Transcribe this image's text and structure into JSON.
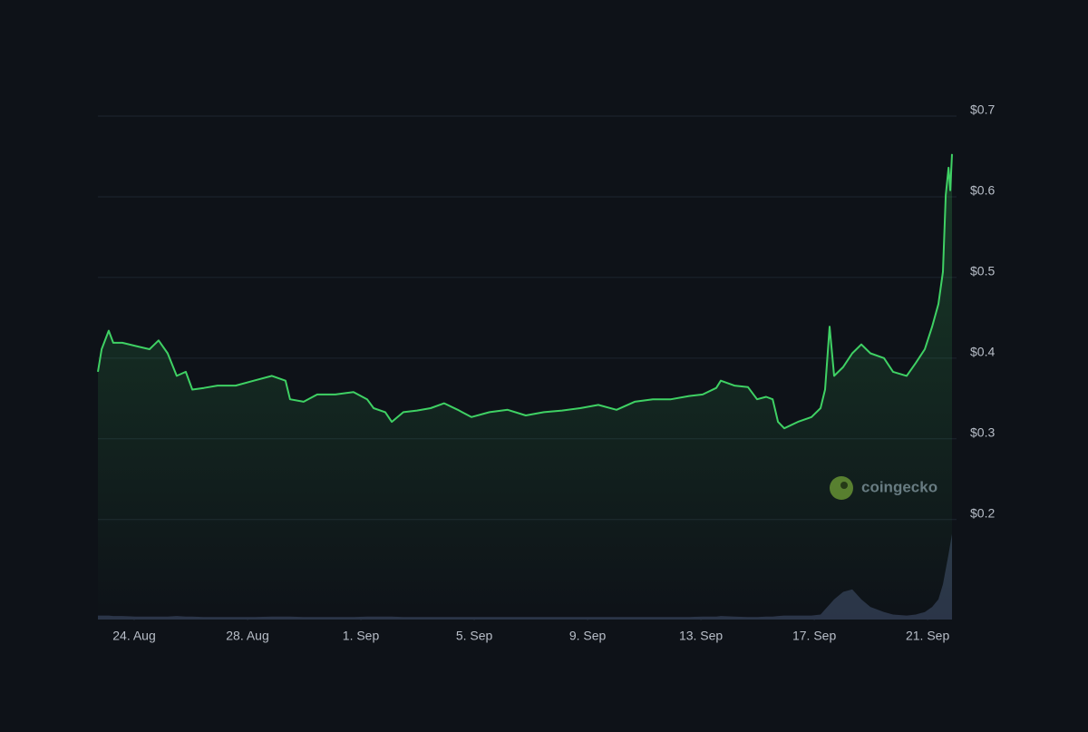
{
  "chart_data": {
    "type": "line",
    "watermark": "coingecko",
    "x": [
      22.72,
      22.85,
      23.1,
      23.26,
      23.58,
      24.06,
      24.54,
      24.86,
      25.18,
      25.5,
      25.82,
      26.05,
      26.46,
      26.94,
      27.58,
      28.22,
      28.86,
      29.34,
      29.5,
      29.98,
      30.46,
      31.1,
      31.74,
      32.22,
      32.45,
      32.86,
      33.09,
      33.5,
      33.98,
      34.46,
      34.94,
      35.42,
      35.9,
      36.54,
      37.18,
      37.82,
      38.46,
      39.1,
      39.74,
      40.38,
      41.02,
      41.66,
      42.3,
      42.94,
      43.58,
      44.06,
      44.54,
      44.7,
      45.18,
      45.66,
      45.98,
      46.3,
      46.53,
      46.72,
      46.94,
      47.42,
      47.9,
      48.22,
      48.38,
      48.54,
      48.7,
      49.02,
      49.34,
      49.66,
      49.98,
      50.46,
      50.78,
      51.26,
      51.58,
      51.9,
      52.16,
      52.38,
      52.54,
      52.64,
      52.74,
      52.8,
      52.86
    ],
    "series": [
      {
        "color": "#3fd164",
        "values": [
          0.383,
          0.411,
          0.434,
          0.419,
          0.419,
          0.415,
          0.411,
          0.422,
          0.406,
          0.378,
          0.383,
          0.361,
          0.363,
          0.366,
          0.366,
          0.372,
          0.378,
          0.372,
          0.349,
          0.346,
          0.355,
          0.355,
          0.358,
          0.349,
          0.338,
          0.333,
          0.321,
          0.333,
          0.335,
          0.338,
          0.344,
          0.336,
          0.327,
          0.333,
          0.336,
          0.329,
          0.333,
          0.335,
          0.338,
          0.342,
          0.336,
          0.346,
          0.349,
          0.349,
          0.353,
          0.355,
          0.363,
          0.372,
          0.366,
          0.364,
          0.349,
          0.352,
          0.349,
          0.321,
          0.313,
          0.321,
          0.327,
          0.338,
          0.361,
          0.439,
          0.378,
          0.389,
          0.406,
          0.417,
          0.406,
          0.4,
          0.383,
          0.378,
          0.394,
          0.411,
          0.439,
          0.467,
          0.507,
          0.602,
          0.636,
          0.608,
          0.653
        ]
      },
      {
        "color": "#2b3548",
        "axis": "y2",
        "values": [
          0.8,
          0.8,
          0.8,
          0.7,
          0.7,
          0.6,
          0.6,
          0.6,
          0.6,
          0.7,
          0.6,
          0.6,
          0.5,
          0.5,
          0.5,
          0.5,
          0.6,
          0.6,
          0.6,
          0.5,
          0.5,
          0.5,
          0.5,
          0.6,
          0.6,
          0.6,
          0.6,
          0.5,
          0.5,
          0.5,
          0.5,
          0.5,
          0.5,
          0.5,
          0.5,
          0.5,
          0.5,
          0.5,
          0.5,
          0.5,
          0.5,
          0.5,
          0.5,
          0.5,
          0.5,
          0.6,
          0.6,
          0.7,
          0.6,
          0.5,
          0.5,
          0.6,
          0.6,
          0.7,
          0.8,
          0.8,
          0.8,
          1,
          2,
          3,
          4,
          5.5,
          6,
          4,
          2.5,
          1.5,
          1,
          0.8,
          1,
          1.5,
          2.5,
          4,
          7,
          10,
          13,
          15,
          17
        ]
      }
    ],
    "xlim": [
      22.72,
      52.86
    ],
    "xticks": [
      {
        "value": 24,
        "label": "24. Aug"
      },
      {
        "value": 28,
        "label": "28. Aug"
      },
      {
        "value": 32,
        "label": "1. Sep"
      },
      {
        "value": 36,
        "label": "5. Sep"
      },
      {
        "value": 40,
        "label": "9. Sep"
      },
      {
        "value": 44,
        "label": "13. Sep"
      },
      {
        "value": 48,
        "label": "17. Sep"
      },
      {
        "value": 52,
        "label": "21. Sep"
      }
    ],
    "ylim": [
      0.076,
      0.7
    ],
    "yticks": [
      {
        "value": 0.2,
        "label": "$0.2"
      },
      {
        "value": 0.3,
        "label": "$0.3"
      },
      {
        "value": 0.4,
        "label": "$0.4"
      },
      {
        "value": 0.5,
        "label": "$0.5"
      },
      {
        "value": 0.6,
        "label": "$0.6"
      },
      {
        "value": 0.7,
        "label": "$0.7"
      }
    ],
    "y2lim": [
      0,
      100
    ],
    "grid": true
  }
}
